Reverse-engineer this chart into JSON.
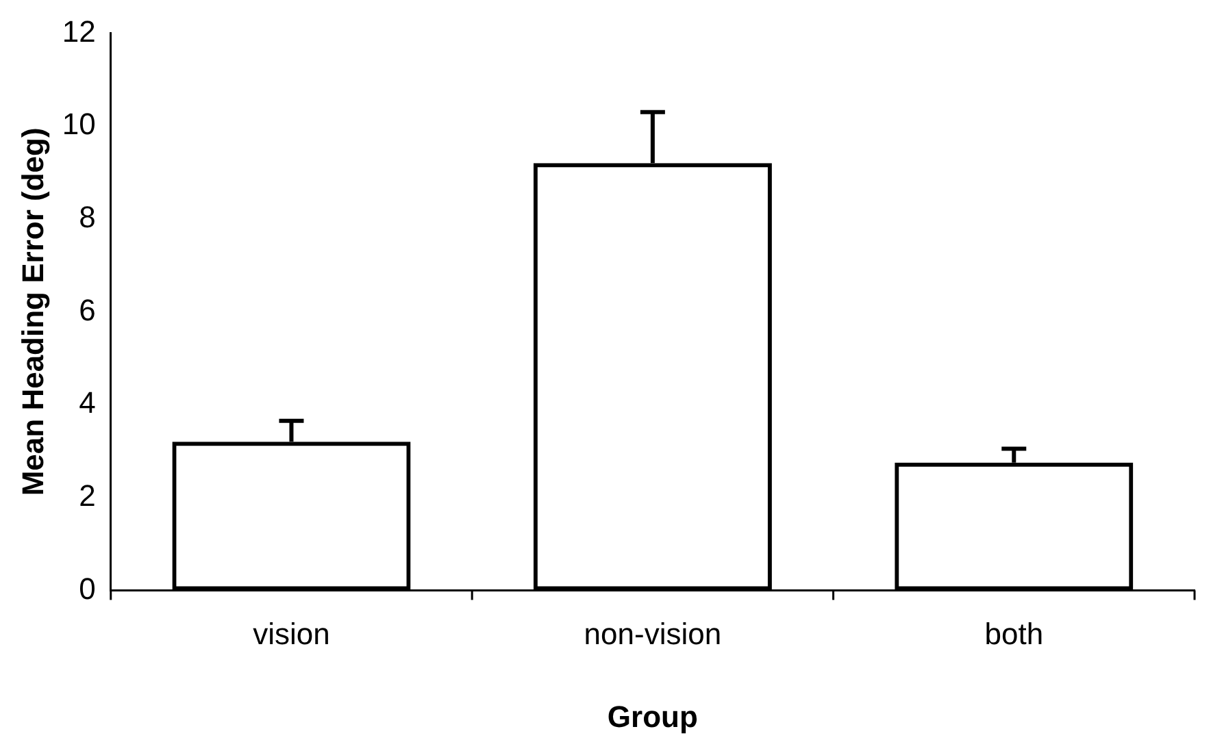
{
  "chart_data": {
    "type": "bar",
    "xlabel": "Group",
    "ylabel": "Mean Heading Error (deg)",
    "categories": [
      "vision",
      "non-vision",
      "both"
    ],
    "values": [
      3.2,
      9.2,
      2.75
    ],
    "errors": [
      [
        3.2,
        3.65
      ],
      [
        9.2,
        10.3
      ],
      [
        2.75,
        3.05
      ]
    ],
    "color": "#000000",
    "ylim": [
      0,
      12
    ],
    "yticks": [
      0,
      2,
      4,
      6,
      8,
      10,
      12
    ],
    "grid": false,
    "legend": false
  }
}
